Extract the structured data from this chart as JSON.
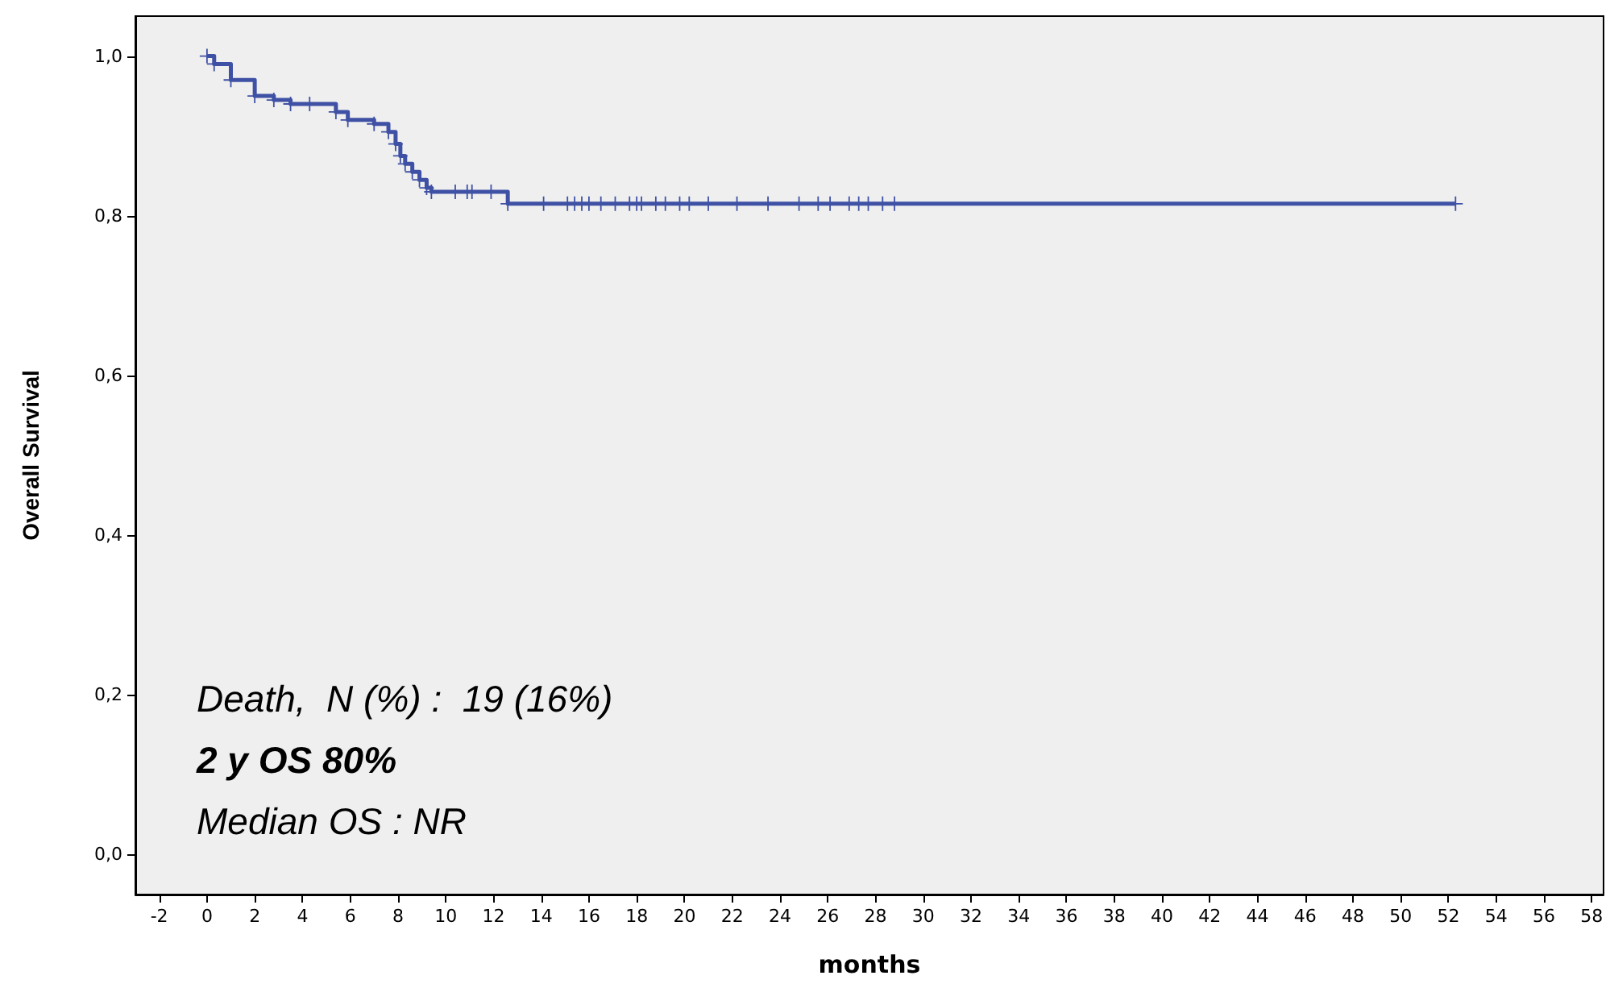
{
  "chart_data": {
    "type": "step",
    "xlabel": "months",
    "ylabel": "Overall Survival",
    "annotations": [
      "Death,  N (%) :  19 (16%)",
      "2 y OS 80%",
      "Median OS : NR"
    ],
    "series": [
      {
        "color": "#3f51a5",
        "x": [
          0,
          0.3,
          1.0,
          2.0,
          2.8,
          3.5,
          4.3,
          5.4,
          5.9,
          7.0,
          7.6,
          7.9,
          8.1,
          8.3,
          8.6,
          8.9,
          9.2,
          9.4,
          10.4,
          10.9,
          11.1,
          11.9,
          12.6,
          14.1,
          15.1,
          15.4,
          15.7,
          16.0,
          16.5,
          17.1,
          17.7,
          18.0,
          18.2,
          18.8,
          19.2,
          19.8,
          20.2,
          21.0,
          22.2,
          23.5,
          24.8,
          25.6,
          26.1,
          26.9,
          27.3,
          27.7,
          28.3,
          28.8,
          52.3
        ],
        "values": [
          1.0,
          0.99,
          0.97,
          0.95,
          0.945,
          0.94,
          0.94,
          0.93,
          0.92,
          0.915,
          0.905,
          0.89,
          0.875,
          0.865,
          0.855,
          0.845,
          0.835,
          0.83,
          0.83,
          0.83,
          0.83,
          0.83,
          0.815,
          0.815,
          0.815,
          0.815,
          0.815,
          0.815,
          0.815,
          0.815,
          0.815,
          0.815,
          0.815,
          0.815,
          0.815,
          0.815,
          0.815,
          0.815,
          0.815,
          0.815,
          0.815,
          0.815,
          0.815,
          0.815,
          0.815,
          0.815,
          0.815,
          0.815,
          0.815
        ]
      }
    ],
    "xlim": [
      -3,
      58.5
    ],
    "xticks": [
      -2,
      0,
      2,
      4,
      6,
      8,
      10,
      12,
      14,
      16,
      18,
      20,
      22,
      24,
      26,
      28,
      30,
      32,
      34,
      36,
      38,
      40,
      42,
      44,
      46,
      48,
      50,
      52,
      54,
      56,
      58
    ],
    "ylim": [
      -0.05,
      1.05
    ],
    "yticks": [
      {
        "value": 0,
        "label": "0,0"
      },
      {
        "value": 0.2,
        "label": "0,2"
      },
      {
        "value": 0.4,
        "label": "0,4"
      },
      {
        "value": 0.6,
        "label": "0,6"
      },
      {
        "value": 0.8,
        "label": "0,8"
      },
      {
        "value": 1,
        "label": "1,0"
      }
    ],
    "marker": "cross",
    "line_style": "solid"
  }
}
